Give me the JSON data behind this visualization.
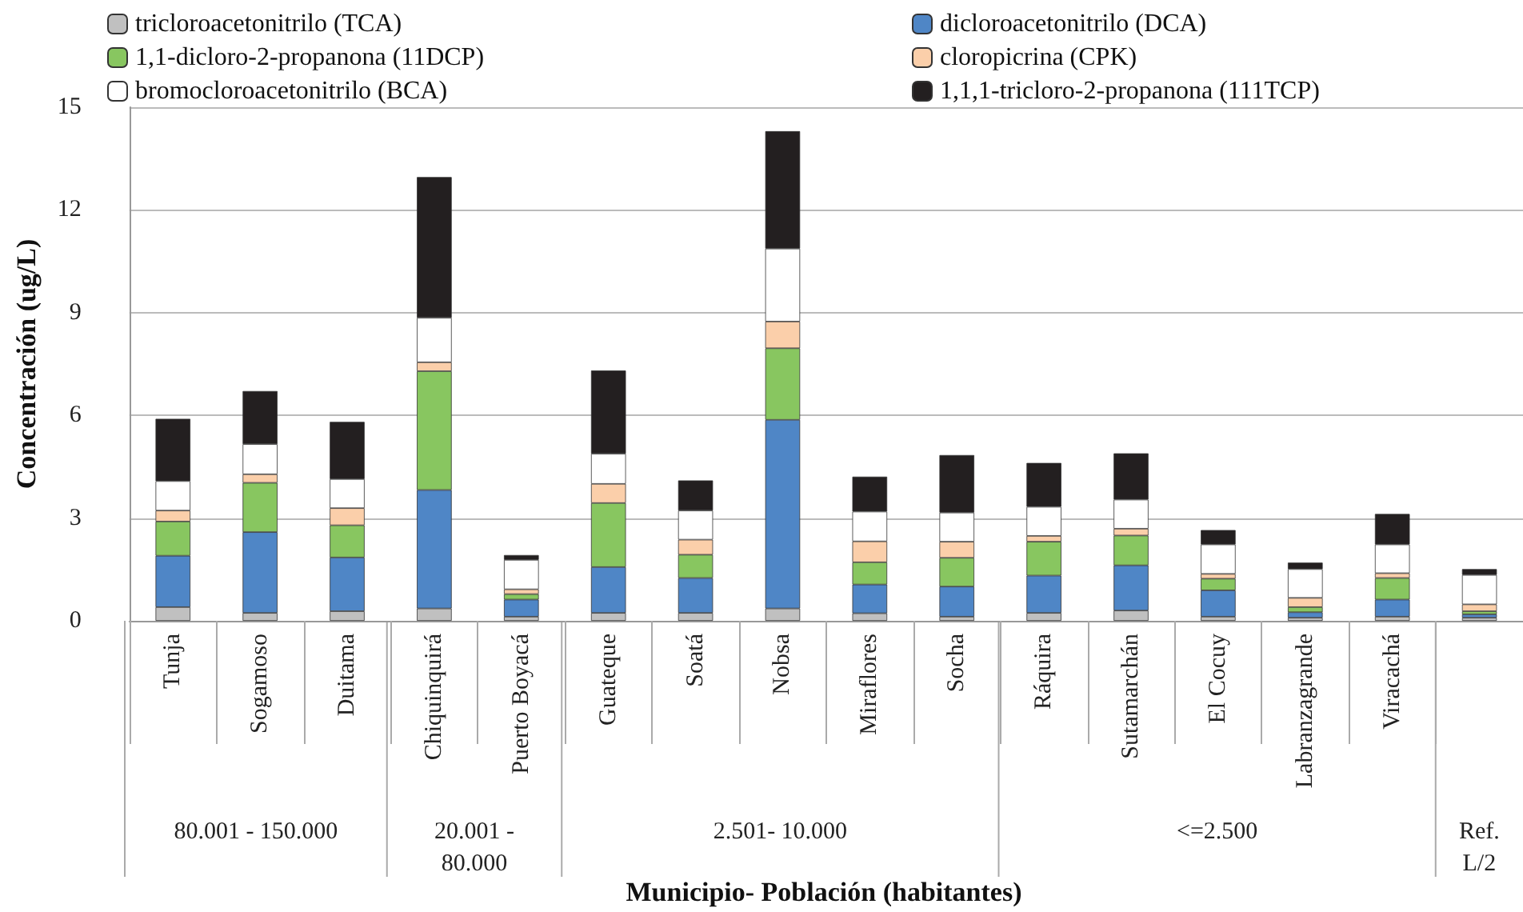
{
  "chart_data": {
    "type": "bar",
    "stacked": true,
    "ylabel": "Concentración (ug/L)",
    "xlabel": "Municipio- Población (habitantes)",
    "categories": [
      "Tunja",
      "Sogamoso",
      "Duitama",
      "Chiquinquirá",
      "Puerto Boyacá",
      "Guateque",
      "Soatá",
      "Nobsa",
      "Miraflores",
      "Socha",
      "Ráquira",
      "Sutamarchán",
      "El Cocuy",
      "Labranzagrande",
      "Viracachá",
      null
    ],
    "ylim": [
      0,
      15
    ],
    "yticks": [
      0,
      3,
      6,
      9,
      12,
      15
    ],
    "grid": "y",
    "legend": "top",
    "series": [
      {
        "name": "tricloroacetonitrilo (TCA)",
        "color": "#c0c0c0",
        "values": [
          0.4,
          0.23,
          0.28,
          0.36,
          0.12,
          0.23,
          0.23,
          0.36,
          0.22,
          0.12,
          0.23,
          0.3,
          0.12,
          0.09,
          0.12,
          0.09
        ]
      },
      {
        "name": "dicloroacetonitrilo (DCA)",
        "color": "#4f86c6",
        "values": [
          1.5,
          2.36,
          1.57,
          3.46,
          0.5,
          1.34,
          1.02,
          5.51,
          0.84,
          0.88,
          1.09,
          1.32,
          0.77,
          0.16,
          0.5,
          0.1
        ]
      },
      {
        "name": "1,1-dicloro-2-propanona (11DCP)",
        "color": "#88c660",
        "values": [
          1.0,
          1.44,
          0.94,
          3.47,
          0.16,
          1.87,
          0.68,
          2.09,
          0.65,
          0.84,
          0.99,
          0.87,
          0.34,
          0.15,
          0.63,
          0.09
        ]
      },
      {
        "name": "cloropicrina (CPK)",
        "color": "#fbcfaa",
        "values": [
          0.32,
          0.25,
          0.5,
          0.26,
          0.14,
          0.56,
          0.44,
          0.78,
          0.61,
          0.47,
          0.17,
          0.2,
          0.14,
          0.27,
          0.14,
          0.2
        ]
      },
      {
        "name": "bromocloroacetonitrilo (BCA)",
        "color": "#ffffff",
        "values": [
          0.86,
          0.88,
          0.85,
          1.3,
          0.86,
          0.88,
          0.85,
          2.13,
          0.87,
          0.85,
          0.85,
          0.85,
          0.86,
          0.84,
          0.84,
          0.86
        ]
      },
      {
        "name": "1,1,1-tricloro-2-propanona (111TCP)",
        "color": "#231f20",
        "values": [
          1.82,
          1.55,
          1.67,
          4.11,
          0.14,
          2.43,
          0.88,
          3.43,
          1.02,
          1.68,
          1.28,
          1.35,
          0.42,
          0.19,
          0.89,
          0.17
        ]
      }
    ],
    "annotations": [
      "80.001 - 150.000",
      "20.001 - 80.000",
      "2.501- 10.000",
      "<=2.500",
      "Ref. L/2"
    ]
  }
}
